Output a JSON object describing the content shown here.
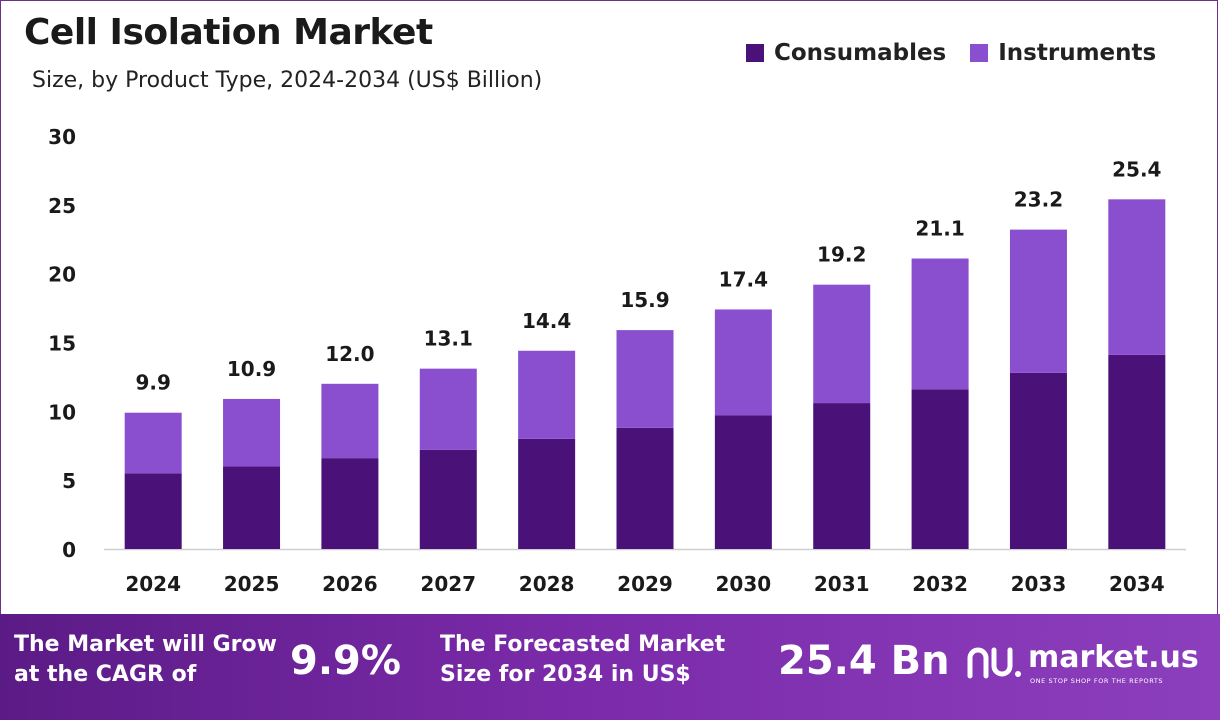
{
  "header": {
    "title": "Cell Isolation Market",
    "subtitle": "Size, by Product Type, 2024-2034 (US$ Billion)"
  },
  "legend": {
    "items": [
      {
        "label": "Consumables",
        "color": "#4a1178"
      },
      {
        "label": "Instruments",
        "color": "#8a4fce"
      }
    ]
  },
  "chart_data": {
    "type": "bar",
    "stacked": true,
    "categories": [
      "2024",
      "2025",
      "2026",
      "2027",
      "2028",
      "2029",
      "2030",
      "2031",
      "2032",
      "2033",
      "2034"
    ],
    "series": [
      {
        "name": "Consumables",
        "color": "#4a1178",
        "values": [
          5.5,
          6.0,
          6.6,
          7.2,
          8.0,
          8.8,
          9.7,
          10.6,
          11.6,
          12.8,
          14.1
        ]
      },
      {
        "name": "Instruments",
        "color": "#8a4fce",
        "values": [
          4.4,
          4.9,
          5.4,
          5.9,
          6.4,
          7.1,
          7.7,
          8.6,
          9.5,
          10.4,
          11.3
        ]
      }
    ],
    "totals": [
      "9.9",
      "10.9",
      "12.0",
      "13.1",
      "14.4",
      "15.9",
      "17.4",
      "19.2",
      "21.1",
      "23.2",
      "25.4"
    ],
    "yticks": [
      0,
      5,
      10,
      15,
      20,
      25,
      30
    ],
    "ylim": [
      0,
      30
    ],
    "grid": false,
    "legend_position": "top-right",
    "xlabel": "",
    "ylabel": ""
  },
  "footer": {
    "cagr_text_line1": "The Market will Grow",
    "cagr_text_line2": "at the CAGR of",
    "cagr_value": "9.9%",
    "forecast_text_line1": "The Forecasted Market",
    "forecast_text_line2": "Size for 2034 in US$",
    "forecast_value": "25.4 Bn",
    "brand_name": "market.us",
    "brand_tagline": "ONE STOP SHOP FOR THE REPORTS"
  }
}
